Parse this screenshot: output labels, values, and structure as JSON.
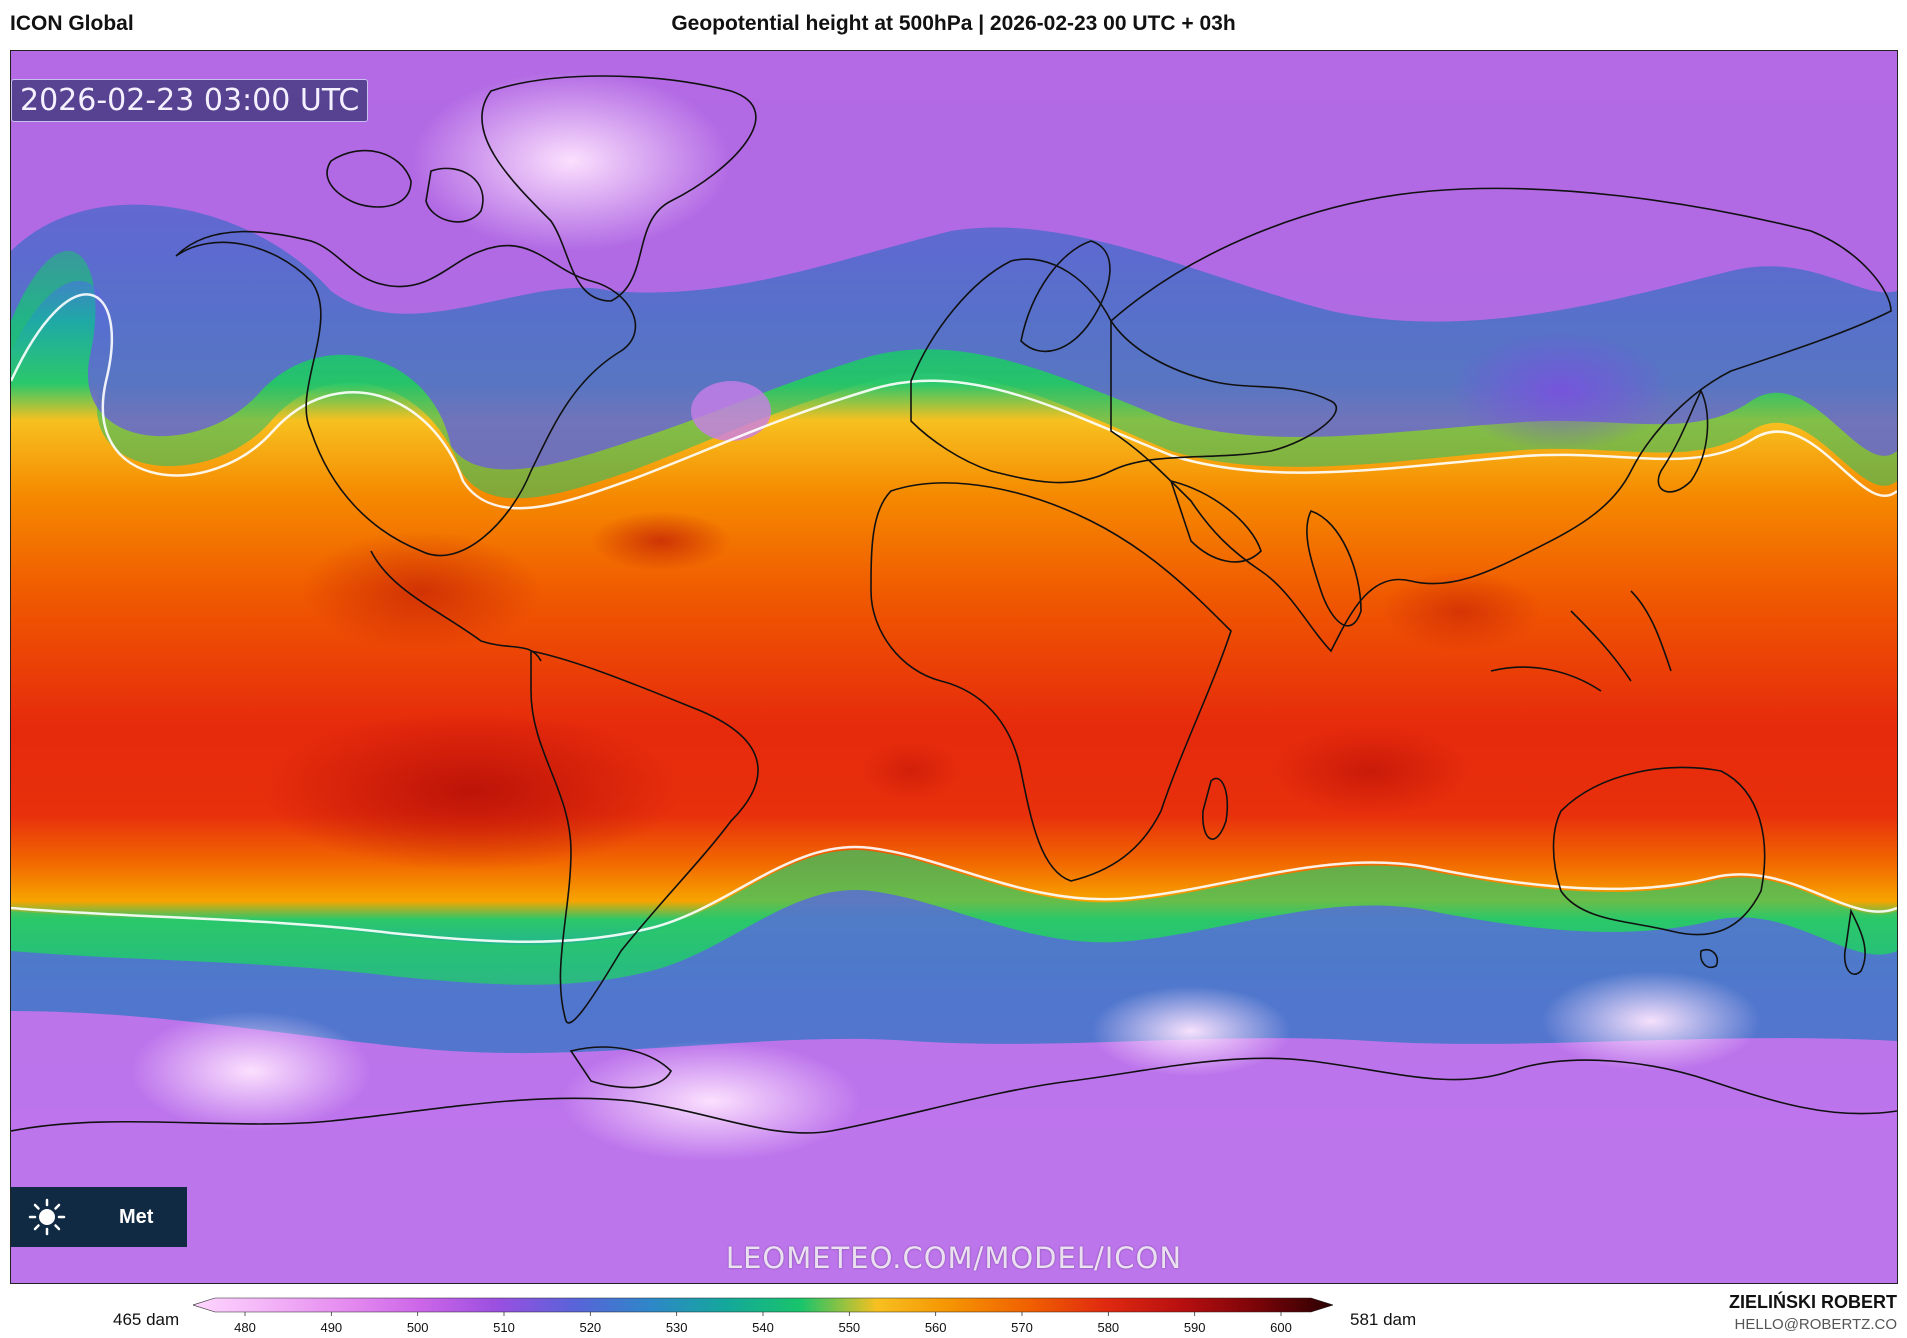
{
  "header": {
    "model": "ICON Global",
    "title": "Geopotential height at 500hPa | 2026-02-23 00 UTC + 03h"
  },
  "map": {
    "timestamp": "2026-02-23 03:00 UTC",
    "badge_text": "Met",
    "watermark": "LEOMETEO.COM/MODEL/ICON",
    "icon": "sun-icon"
  },
  "colorbar": {
    "min_label": "465 dam",
    "max_label": "581 dam",
    "ticks": [
      "480",
      "490",
      "500",
      "510",
      "520",
      "530",
      "540",
      "550",
      "560",
      "570",
      "580",
      "590",
      "600"
    ],
    "stops": [
      "#ffd6ff",
      "#f3b3f7",
      "#e58cf0",
      "#cc66e8",
      "#9a4fe0",
      "#5a63d9",
      "#2f86c9",
      "#14a79c",
      "#19c46a",
      "#f7c020",
      "#f59200",
      "#f06000",
      "#e02a10",
      "#b80f10",
      "#7a0408",
      "#2a0002"
    ]
  },
  "credit": {
    "name": "ZIELIŃSKI ROBERT",
    "email": "HELLO@ROBERTZ.CO"
  },
  "colors": {
    "cold": "#e58cf0",
    "cool": "#5a63d9",
    "mid": "#19c46a",
    "warm": "#f59200",
    "hot": "#e02a10"
  }
}
